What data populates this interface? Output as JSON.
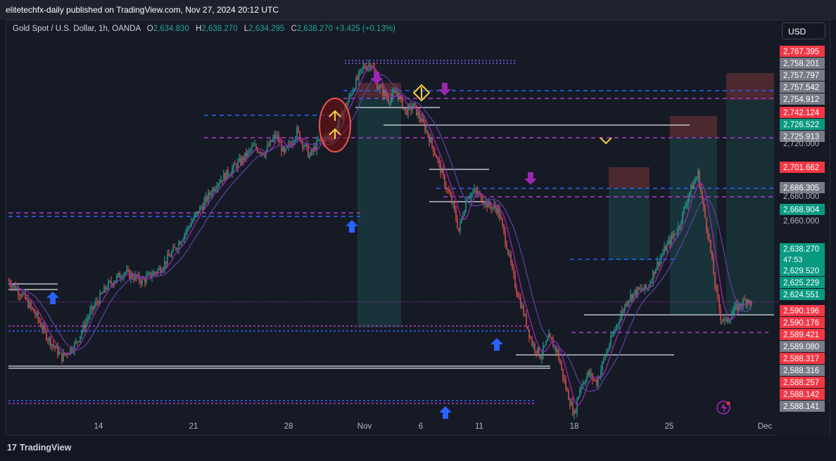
{
  "header": {
    "publisher_text": "elitetechfx-daily published on TradingView.com, Nov 27, 2024 20:12 UTC"
  },
  "legend": {
    "symbol": "Gold Spot / U.S. Dollar, 1h, OANDA",
    "o_label": "O",
    "o_value": "2,634.830",
    "h_label": "H",
    "h_value": "2,638.270",
    "l_label": "L",
    "l_value": "2,634.295",
    "c_label": "C",
    "c_value": "2,638.270",
    "change": "+3.425 (+0.13%)"
  },
  "currency_button": "USD",
  "footer": {
    "brand": "TradingView"
  },
  "colors": {
    "up": "#26a69a",
    "down": "#ef5350",
    "ma": "#9c27b0",
    "blue_dash": "#2962ff",
    "purple_dash": "#b23acd",
    "price_line": "#089981",
    "background": "#161a25"
  },
  "chart_data": {
    "type": "candlestick",
    "timeframe": "1h",
    "current_price": "2,638.270",
    "countdown": "47:53",
    "y_axis_ticks": [
      "2,720.000",
      "2,680.000",
      "2,660.000"
    ],
    "x_axis_ticks": [
      "14",
      "21",
      "28",
      "Nov",
      "6",
      "11",
      "18",
      "25",
      "Dec"
    ],
    "ylim": [
      2571,
      2784
    ],
    "price_path": [
      [
        0,
        2650
      ],
      [
        10,
        2642
      ],
      [
        20,
        2630
      ],
      [
        28,
        2618
      ],
      [
        38,
        2607
      ],
      [
        48,
        2615
      ],
      [
        58,
        2632
      ],
      [
        70,
        2647
      ],
      [
        82,
        2655
      ],
      [
        95,
        2650
      ],
      [
        108,
        2657
      ],
      [
        120,
        2670
      ],
      [
        130,
        2683
      ],
      [
        140,
        2695
      ],
      [
        148,
        2705
      ],
      [
        158,
        2712
      ],
      [
        166,
        2718
      ],
      [
        174,
        2725
      ],
      [
        182,
        2722
      ],
      [
        190,
        2732
      ],
      [
        196,
        2721
      ],
      [
        205,
        2734
      ],
      [
        214,
        2720
      ],
      [
        220,
        2728
      ],
      [
        230,
        2731
      ],
      [
        238,
        2745
      ],
      [
        246,
        2760
      ],
      [
        252,
        2770
      ],
      [
        258,
        2772
      ],
      [
        262,
        2760
      ],
      [
        270,
        2752
      ],
      [
        276,
        2756
      ],
      [
        282,
        2745
      ],
      [
        288,
        2748
      ],
      [
        296,
        2736
      ],
      [
        304,
        2720
      ],
      [
        310,
        2705
      ],
      [
        316,
        2692
      ],
      [
        320,
        2678
      ],
      [
        326,
        2698
      ],
      [
        332,
        2700
      ],
      [
        340,
        2693
      ],
      [
        348,
        2690
      ],
      [
        354,
        2670
      ],
      [
        360,
        2648
      ],
      [
        366,
        2632
      ],
      [
        372,
        2615
      ],
      [
        378,
        2608
      ],
      [
        384,
        2618
      ],
      [
        390,
        2610
      ],
      [
        396,
        2590
      ],
      [
        402,
        2575
      ],
      [
        406,
        2590
      ],
      [
        412,
        2598
      ],
      [
        418,
        2593
      ],
      [
        424,
        2608
      ],
      [
        432,
        2625
      ],
      [
        440,
        2640
      ],
      [
        446,
        2644
      ],
      [
        454,
        2646
      ],
      [
        460,
        2658
      ],
      [
        468,
        2670
      ],
      [
        476,
        2680
      ],
      [
        484,
        2700
      ],
      [
        490,
        2710
      ],
      [
        494,
        2690
      ],
      [
        498,
        2672
      ],
      [
        502,
        2648
      ],
      [
        506,
        2630
      ],
      [
        510,
        2627
      ],
      [
        516,
        2634
      ],
      [
        522,
        2638
      ],
      [
        525,
        2640
      ],
      [
        528,
        2636
      ]
    ],
    "annotations": {
      "right_axis_labels": [
        "2,767.395",
        "2,758.201",
        "2,757.797",
        "2,757.542",
        "2,754.912",
        "2,742.124",
        "2,726.522",
        "2,725.913",
        "2,701.662",
        "2,686.305",
        "2,668.904",
        "2,629.520",
        "2,625.229",
        "2,624.551",
        "2,590.196",
        "2,590.176",
        "2,589.421",
        "2,589.080",
        "2,588.317",
        "2,588.316",
        "2,588.257",
        "2,588.142",
        "2,588.141"
      ],
      "arrows_up": 5,
      "arrows_down": 3
    }
  }
}
